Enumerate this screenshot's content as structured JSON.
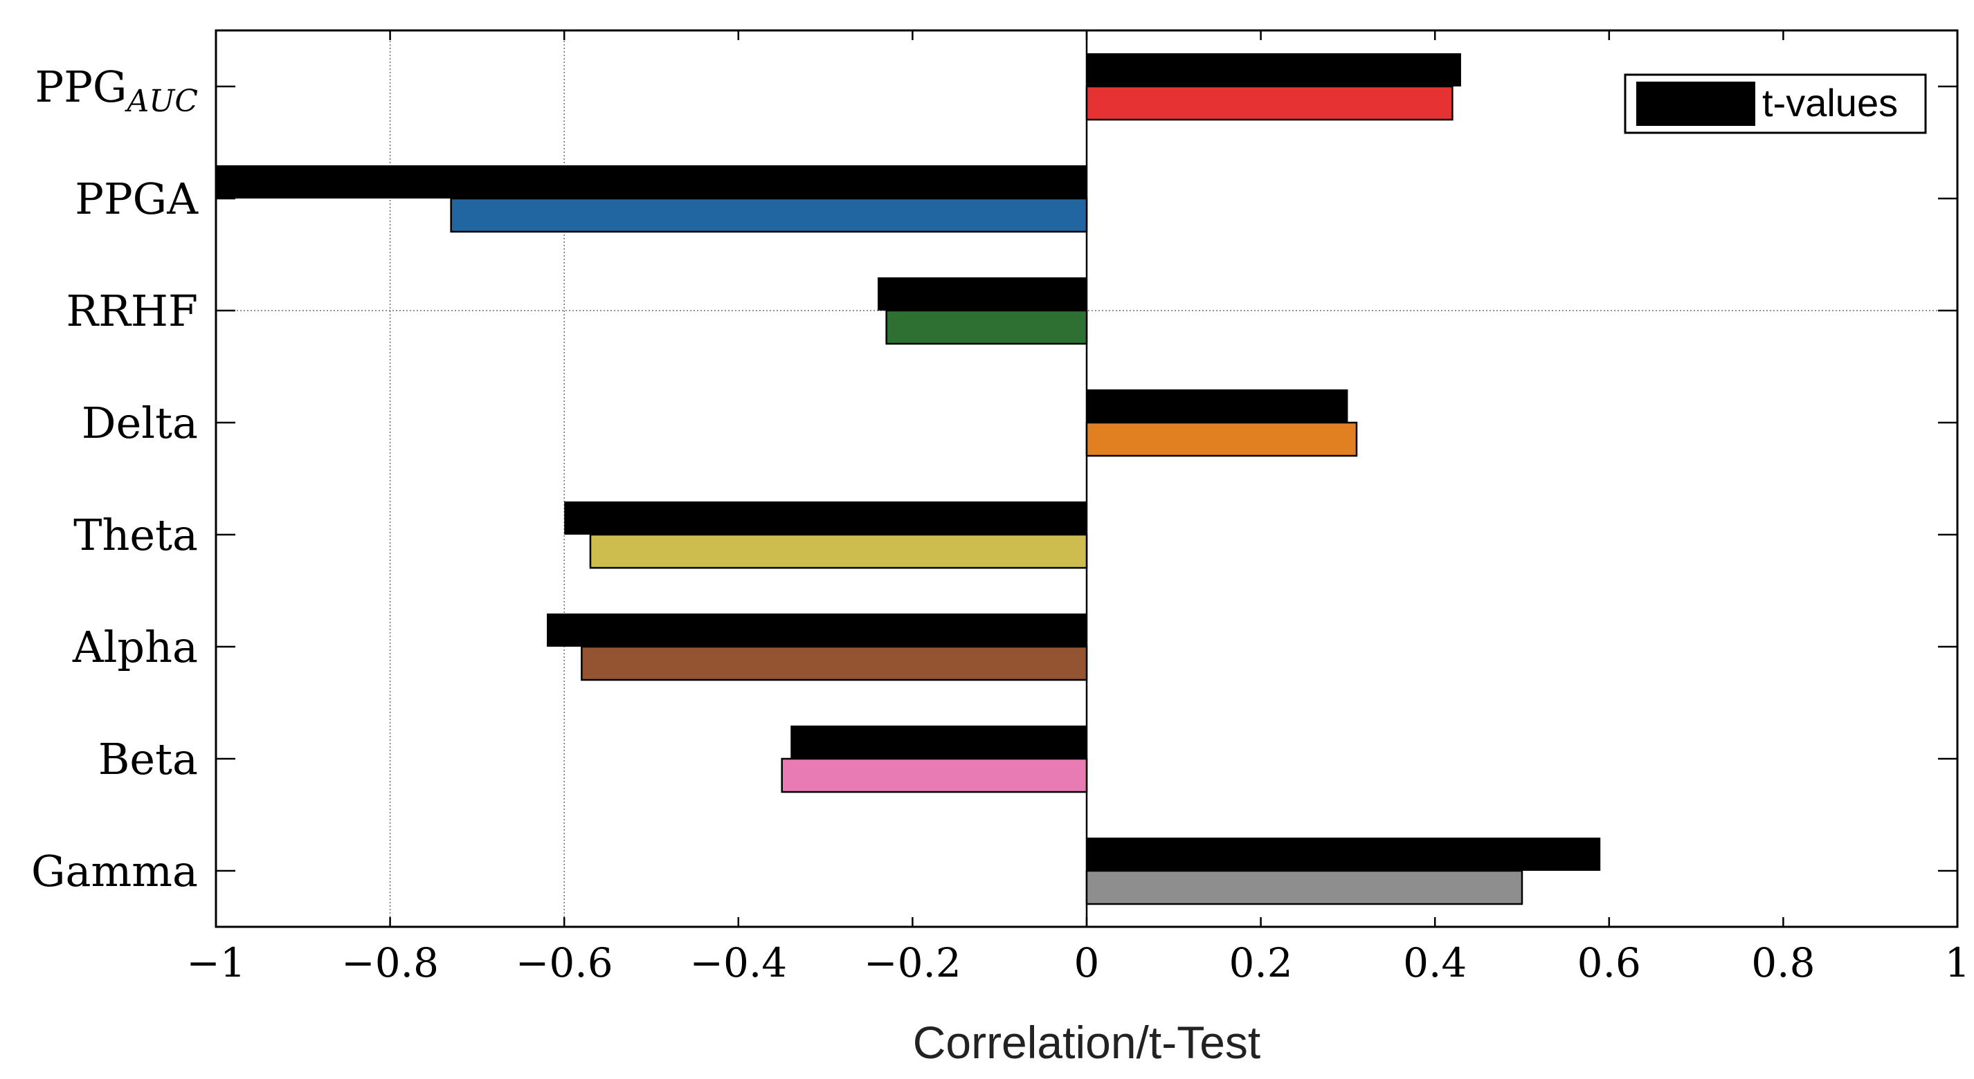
{
  "chart_data": {
    "type": "bar",
    "orientation": "horizontal",
    "title": "",
    "xlabel": "Correlation/t-Test",
    "ylabel": "",
    "xlim": [
      -1,
      1
    ],
    "xticks": [
      -1,
      -0.8,
      -0.6,
      -0.4,
      -0.2,
      0,
      0.2,
      0.4,
      0.6,
      0.8,
      1
    ],
    "xtick_labels": [
      "−1",
      "−0.8",
      "−0.6",
      "−0.4",
      "−0.2",
      "0",
      "0.2",
      "0.4",
      "0.6",
      "0.8",
      "1"
    ],
    "grid": "partial",
    "legend": {
      "placement": "top-right",
      "entries": [
        "t-values"
      ]
    },
    "categories": [
      {
        "name": "PPG",
        "subscript": "AUC"
      },
      {
        "name": "PPGA",
        "subscript": ""
      },
      {
        "name": "RRHF",
        "subscript": ""
      },
      {
        "name": "Delta",
        "subscript": ""
      },
      {
        "name": "Theta",
        "subscript": ""
      },
      {
        "name": "Alpha",
        "subscript": ""
      },
      {
        "name": "Beta",
        "subscript": ""
      },
      {
        "name": "Gamma",
        "subscript": ""
      }
    ],
    "series": [
      {
        "name": "t-values",
        "color": "#000000",
        "values": [
          0.43,
          -1.0,
          -0.24,
          0.3,
          -0.6,
          -0.62,
          -0.34,
          0.59
        ]
      },
      {
        "name": "Correlation",
        "colors": [
          "#e63232",
          "#2166a0",
          "#2e7031",
          "#e08020",
          "#cdbd4f",
          "#955431",
          "#e87ab4",
          "#8e8e8e"
        ],
        "values": [
          0.42,
          -0.73,
          -0.23,
          0.31,
          -0.57,
          -0.58,
          -0.35,
          0.5
        ]
      }
    ]
  }
}
